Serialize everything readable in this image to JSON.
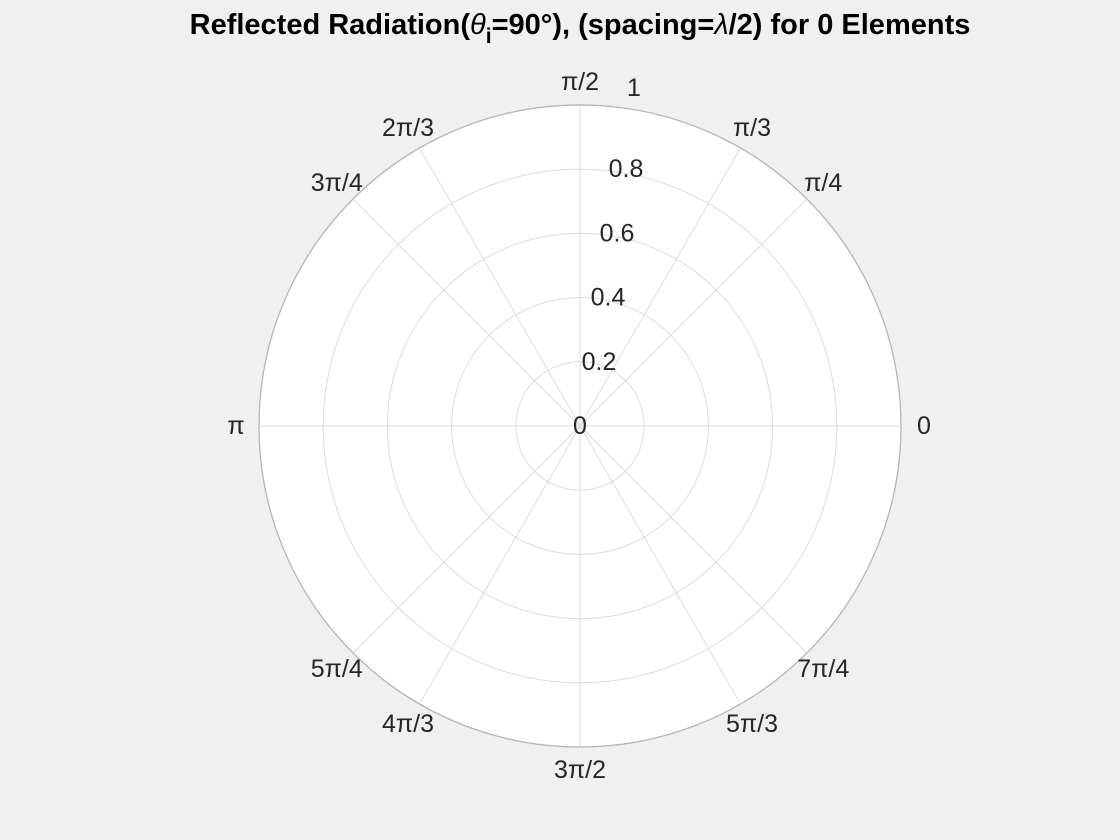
{
  "chart_data": {
    "type": "polar",
    "title": {
      "prefix": "Reflected Radiation(",
      "symbol": "θ",
      "subscript": "i",
      "suffix": "=90°), (spacing=",
      "lambda": "λ",
      "end": "/2) for 0 Elements"
    },
    "rlim": [
      0,
      1
    ],
    "r_ticks": [
      0,
      0.2,
      0.4,
      0.6,
      0.8,
      1
    ],
    "r_tick_labels": [
      "0",
      "0.2",
      "0.4",
      "0.6",
      "0.8",
      "1"
    ],
    "theta_ticks_rad": [
      0,
      0.7854,
      1.0472,
      1.5708,
      2.0944,
      2.3562,
      3.1416,
      3.927,
      4.1888,
      4.7124,
      5.236,
      5.4978
    ],
    "theta_tick_labels": [
      "0",
      "π/4",
      "π/3",
      "π/2",
      "2π/3",
      "3π/4",
      "π",
      "5π/4",
      "4π/3",
      "3π/2",
      "5π/3",
      "7π/4"
    ],
    "grid": true,
    "series": []
  }
}
